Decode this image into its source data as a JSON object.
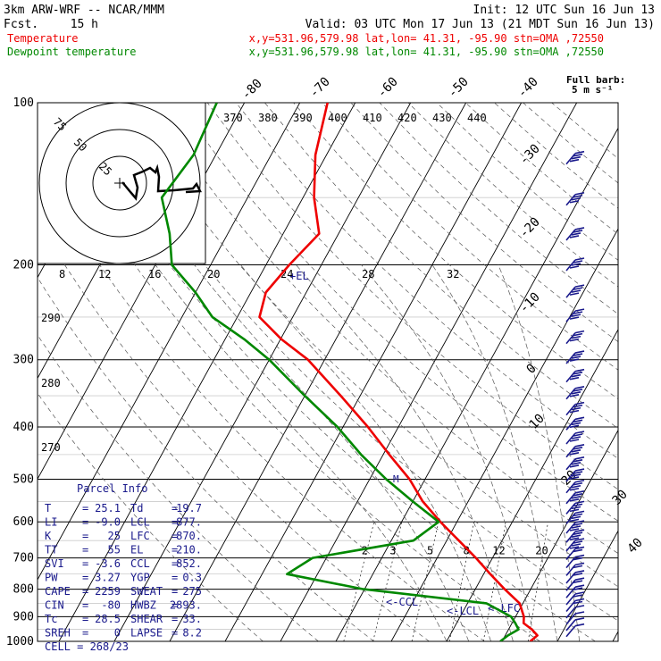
{
  "header": {
    "model": "3km ARW-WRF -- NCAR/MMM",
    "init": "Init: 12 UTC Sun 16 Jun 13",
    "fcst_label": "Fcst.",
    "fcst_value": "15 h",
    "valid": "Valid: 03 UTC Mon 17 Jun 13 (21 MDT Sun 16 Jun 13)",
    "temp_label": "Temperature",
    "temp_loc": "x,y=531.96,579.98  lat,lon= 41.31, -95.90  stn=OMA ,72550",
    "dew_label": "Dewpoint temperature",
    "dew_loc": "x,y=531.96,579.98  lat,lon= 41.31, -95.90  stn=OMA ,72550"
  },
  "colors": {
    "temperature": "#ee0000",
    "dewpoint": "#008800",
    "navy": "#1a1a8c"
  },
  "barb_key": {
    "label": "Full barb:",
    "value": "5 m s⁻¹"
  },
  "hodograph": {
    "units": "kts",
    "ring_labels": [
      "25",
      "50",
      "75"
    ]
  },
  "parcel_info": {
    "title": "Parcel Info",
    "rows": [
      {
        "l1": "T",
        "v1": "25.1",
        "l2": "Td",
        "v2": "19.7"
      },
      {
        "l1": "LI",
        "v1": "-9.0",
        "l2": "LCL",
        "v2": "877."
      },
      {
        "l1": "K",
        "v1": "25",
        "l2": "LFC",
        "v2": "870."
      },
      {
        "l1": "TT",
        "v1": "55",
        "l2": "EL",
        "v2": "210."
      },
      {
        "l1": "SVI",
        "v1": "-3.6",
        "l2": "CCL",
        "v2": "852."
      },
      {
        "l1": "PW",
        "v1": "3.27",
        "l2": "YGP",
        "v2": "0.3"
      },
      {
        "l1": "CAPE",
        "v1": "2259",
        "l2": "SWEAT",
        "v2": "275"
      },
      {
        "l1": "CIN",
        "v1": "-80",
        "l2": "HWBZ",
        "v2": "2893."
      },
      {
        "l1": "Tc",
        "v1": "28.5",
        "l2": "SHEAR",
        "v2": "33."
      },
      {
        "l1": "SREH",
        "v1": "0",
        "l2": "LAPSE",
        "v2": "8.2"
      }
    ],
    "cell": "CELL = 268/23"
  },
  "chart_data": {
    "type": "line",
    "title": "",
    "xlabel": "",
    "ylabel": "",
    "y_axis": "Pressure (hPa, log scale)",
    "pressure_ticks": [
      100,
      200,
      300,
      400,
      500,
      600,
      700,
      800,
      900,
      1000
    ],
    "isotherm_labels": [
      "-80",
      "-70",
      "-60",
      "-50",
      "-40",
      "-30",
      "-20",
      "-10",
      "0",
      "10",
      "20",
      "30",
      "40"
    ],
    "mixing_ratio_labels": [
      "2",
      "3",
      "5",
      "8",
      "12",
      "20"
    ],
    "theta_labels": [
      "290",
      "280",
      "270"
    ],
    "theta_e_labels": [
      "370",
      "380",
      "390",
      "400",
      "410",
      "420",
      "430",
      "440"
    ],
    "hodo_speed_labels": [
      "8",
      "12",
      "16",
      "20",
      "24",
      "28",
      "32"
    ],
    "level_labels": [
      "EL",
      "CCL",
      "LCL",
      "LFC"
    ],
    "series": [
      {
        "name": "Temperature",
        "pressure": [
          1000,
          975,
          950,
          925,
          900,
          850,
          800,
          750,
          700,
          650,
          600,
          550,
          500,
          450,
          400,
          350,
          300,
          275,
          250,
          225,
          200,
          175,
          150,
          125,
          100
        ],
        "values": [
          25.1,
          25.8,
          24.2,
          22.1,
          21.5,
          19.4,
          15.3,
          11.2,
          7.0,
          2.2,
          -3.0,
          -8.2,
          -12.8,
          -18.9,
          -25.5,
          -33.5,
          -43.0,
          -49.8,
          -56.0,
          -57.3,
          -55.8,
          -53.5,
          -58.0,
          -62.0,
          -65.0
        ]
      },
      {
        "name": "Dewpoint temperature",
        "pressure": [
          1000,
          975,
          950,
          925,
          900,
          850,
          800,
          750,
          700,
          650,
          600,
          550,
          500,
          450,
          400,
          350,
          300,
          275,
          250,
          225,
          200,
          175,
          150,
          125,
          100
        ],
        "values": [
          19.7,
          20.5,
          21.8,
          20.6,
          19.2,
          13.4,
          -10.2,
          -25.5,
          -22.5,
          -6.0,
          -3.3,
          -10.0,
          -17.0,
          -24.0,
          -31.0,
          -40.0,
          -50.0,
          -56.5,
          -64.5,
          -70.0,
          -77.0,
          -80.5,
          -85.5,
          -84.0,
          -85.0
        ]
      }
    ],
    "legend": "top-left",
    "grid": true
  }
}
